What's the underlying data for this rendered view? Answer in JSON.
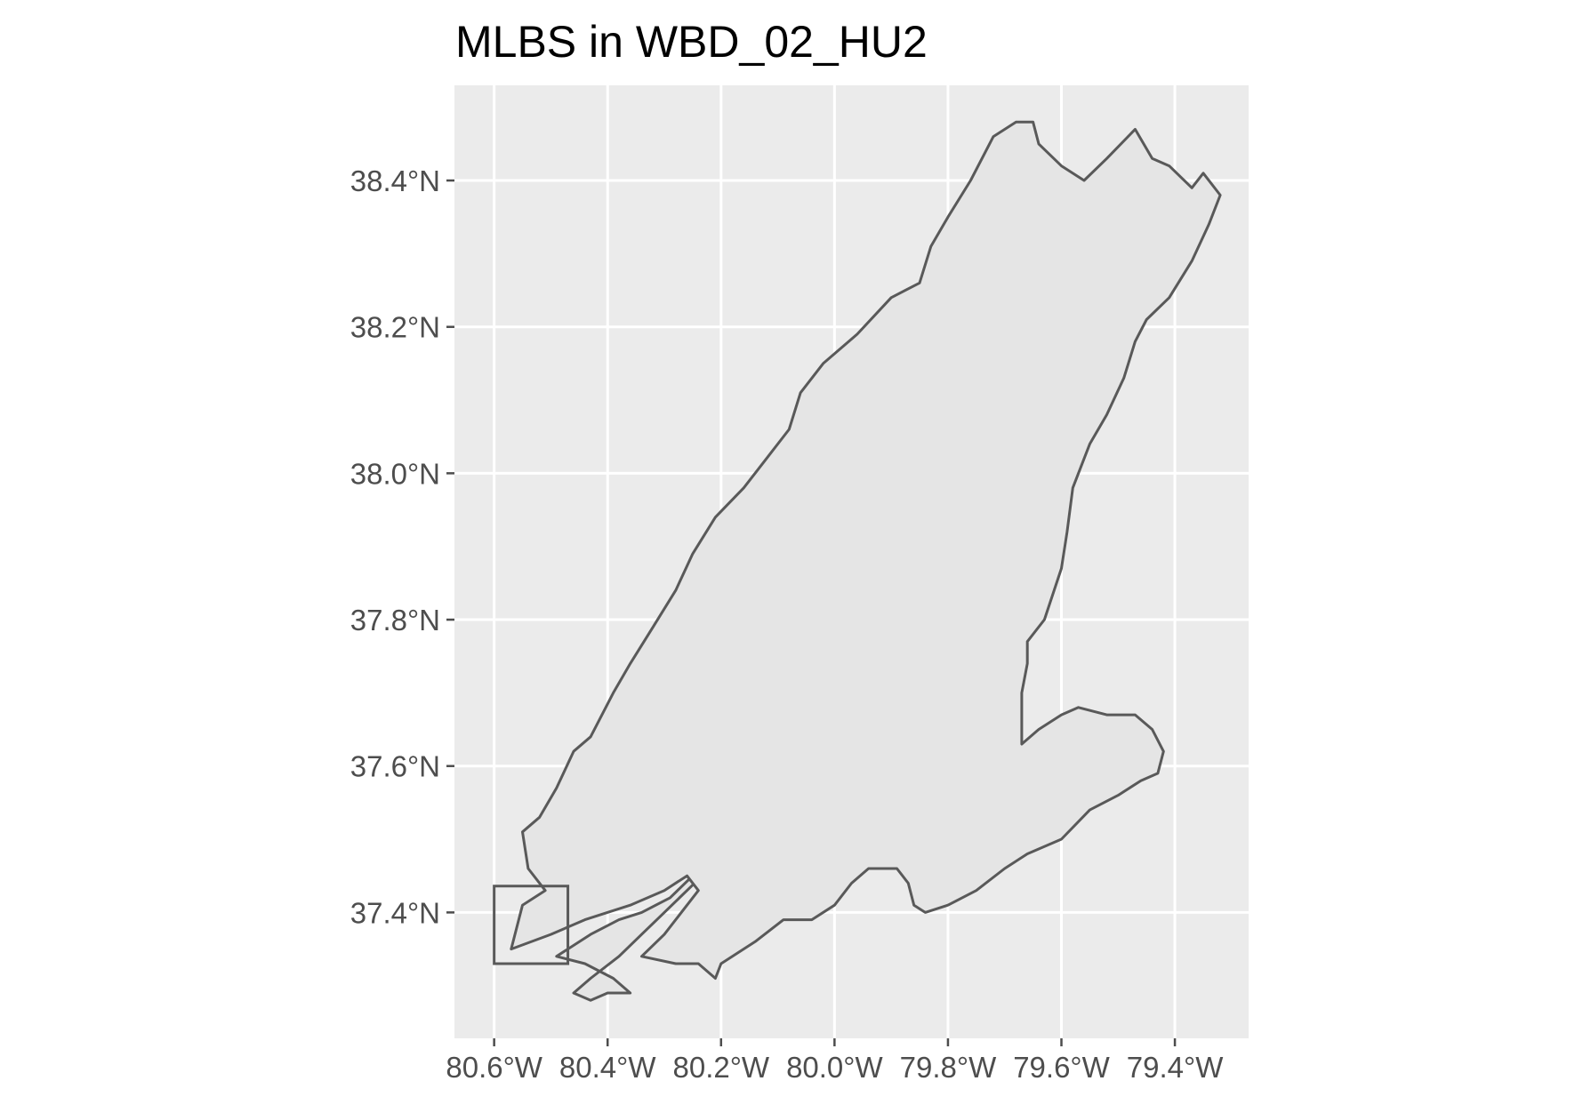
{
  "title": "MLBS in WBD_02_HU2",
  "colors": {
    "panel_background": "#ebebeb",
    "grid_line": "#ffffff",
    "polygon_fill": "#e5e5e5",
    "polygon_stroke": "#595959",
    "tick_text": "#4d4d4d",
    "title_text": "#000000"
  },
  "chart_data": {
    "type": "map",
    "title": "MLBS in WBD_02_HU2",
    "xlim": [
      -80.67,
      -79.27
    ],
    "ylim": [
      37.228,
      38.53
    ],
    "x_ticks": [
      {
        "value": -80.6,
        "label": "80.6°W"
      },
      {
        "value": -80.4,
        "label": "80.4°W"
      },
      {
        "value": -80.2,
        "label": "80.2°W"
      },
      {
        "value": -80.0,
        "label": "80.0°W"
      },
      {
        "value": -79.8,
        "label": "79.8°W"
      },
      {
        "value": -79.6,
        "label": "79.6°W"
      },
      {
        "value": -79.4,
        "label": "79.4°W"
      }
    ],
    "y_ticks": [
      {
        "value": 37.4,
        "label": "37.4°N"
      },
      {
        "value": 37.6,
        "label": "37.6°N"
      },
      {
        "value": 37.8,
        "label": "37.8°N"
      },
      {
        "value": 38.0,
        "label": "38.0°N"
      },
      {
        "value": 38.2,
        "label": "38.2°N"
      },
      {
        "value": 38.4,
        "label": "38.4°N"
      }
    ],
    "grid": true,
    "layers": [
      {
        "type": "polygon",
        "fill": true,
        "coordinates": [
          [
            -80.36,
            37.29
          ],
          [
            -80.39,
            37.31
          ],
          [
            -80.44,
            37.33
          ],
          [
            -80.49,
            37.34
          ],
          [
            -80.43,
            37.37
          ],
          [
            -80.38,
            37.39
          ],
          [
            -80.34,
            37.4
          ],
          [
            -80.29,
            37.42
          ],
          [
            -80.25,
            37.45
          ],
          [
            -80.22,
            37.46
          ],
          [
            -80.26,
            37.43
          ],
          [
            -80.3,
            37.4
          ],
          [
            -80.34,
            37.37
          ],
          [
            -80.38,
            37.34
          ],
          [
            -80.43,
            37.31
          ],
          [
            -80.46,
            37.29
          ],
          [
            -80.43,
            37.28
          ],
          [
            -80.4,
            37.29
          ],
          [
            -80.36,
            37.29
          ]
        ]
      },
      {
        "type": "polygon",
        "fill": true,
        "coordinates": [
          [
            -80.21,
            37.31
          ],
          [
            -80.2,
            37.33
          ],
          [
            -80.14,
            37.36
          ],
          [
            -80.09,
            37.39
          ],
          [
            -80.04,
            37.39
          ],
          [
            -80.0,
            37.41
          ],
          [
            -79.97,
            37.44
          ],
          [
            -79.94,
            37.46
          ],
          [
            -79.89,
            37.46
          ],
          [
            -79.87,
            37.44
          ],
          [
            -79.86,
            37.41
          ],
          [
            -79.84,
            37.4
          ],
          [
            -79.8,
            37.41
          ],
          [
            -79.75,
            37.43
          ],
          [
            -79.7,
            37.46
          ],
          [
            -79.66,
            37.48
          ],
          [
            -79.6,
            37.5
          ],
          [
            -79.55,
            37.54
          ],
          [
            -79.5,
            37.56
          ],
          [
            -79.46,
            37.58
          ],
          [
            -79.43,
            37.59
          ],
          [
            -79.42,
            37.62
          ],
          [
            -79.44,
            37.65
          ],
          [
            -79.47,
            37.67
          ],
          [
            -79.52,
            37.67
          ],
          [
            -79.57,
            37.68
          ],
          [
            -79.6,
            37.67
          ],
          [
            -79.64,
            37.65
          ],
          [
            -79.67,
            37.63
          ],
          [
            -79.67,
            37.7
          ],
          [
            -79.66,
            37.74
          ],
          [
            -79.66,
            37.77
          ],
          [
            -79.63,
            37.8
          ],
          [
            -79.6,
            37.87
          ],
          [
            -79.59,
            37.92
          ],
          [
            -79.58,
            37.98
          ],
          [
            -79.55,
            38.04
          ],
          [
            -79.52,
            38.08
          ],
          [
            -79.49,
            38.13
          ],
          [
            -79.47,
            38.18
          ],
          [
            -79.45,
            38.21
          ],
          [
            -79.41,
            38.24
          ],
          [
            -79.37,
            38.29
          ],
          [
            -79.34,
            38.34
          ],
          [
            -79.32,
            38.38
          ],
          [
            -79.35,
            38.41
          ],
          [
            -79.37,
            38.39
          ],
          [
            -79.41,
            38.42
          ],
          [
            -79.44,
            38.43
          ],
          [
            -79.47,
            38.47
          ],
          [
            -79.52,
            38.43
          ],
          [
            -79.56,
            38.4
          ],
          [
            -79.6,
            38.42
          ],
          [
            -79.64,
            38.45
          ],
          [
            -79.65,
            38.48
          ],
          [
            -79.68,
            38.48
          ],
          [
            -79.72,
            38.46
          ],
          [
            -79.76,
            38.4
          ],
          [
            -79.8,
            38.35
          ],
          [
            -79.83,
            38.31
          ],
          [
            -79.85,
            38.26
          ],
          [
            -79.9,
            38.24
          ],
          [
            -79.96,
            38.19
          ],
          [
            -80.02,
            38.15
          ],
          [
            -80.06,
            38.11
          ],
          [
            -80.08,
            38.06
          ],
          [
            -80.12,
            38.02
          ],
          [
            -80.16,
            37.98
          ],
          [
            -80.21,
            37.94
          ],
          [
            -80.25,
            37.89
          ],
          [
            -80.28,
            37.84
          ],
          [
            -80.32,
            37.79
          ],
          [
            -80.36,
            37.74
          ],
          [
            -80.39,
            37.7
          ],
          [
            -80.43,
            37.64
          ],
          [
            -80.46,
            37.62
          ],
          [
            -80.49,
            37.57
          ],
          [
            -80.52,
            37.53
          ],
          [
            -80.55,
            37.51
          ],
          [
            -80.54,
            37.46
          ],
          [
            -80.51,
            37.43
          ],
          [
            -80.55,
            37.41
          ],
          [
            -80.57,
            37.35
          ],
          [
            -80.5,
            37.37
          ],
          [
            -80.44,
            37.39
          ],
          [
            -80.36,
            37.41
          ],
          [
            -80.3,
            37.43
          ],
          [
            -80.26,
            37.45
          ],
          [
            -80.24,
            37.43
          ],
          [
            -80.26,
            37.41
          ],
          [
            -80.3,
            37.37
          ],
          [
            -80.34,
            37.34
          ],
          [
            -80.28,
            37.33
          ],
          [
            -80.24,
            37.33
          ],
          [
            -80.21,
            37.31
          ]
        ]
      },
      {
        "type": "rectangle",
        "fill": false,
        "xmin": -80.6,
        "xmax": -80.47,
        "ymin": 37.33,
        "ymax": 37.436
      }
    ]
  }
}
